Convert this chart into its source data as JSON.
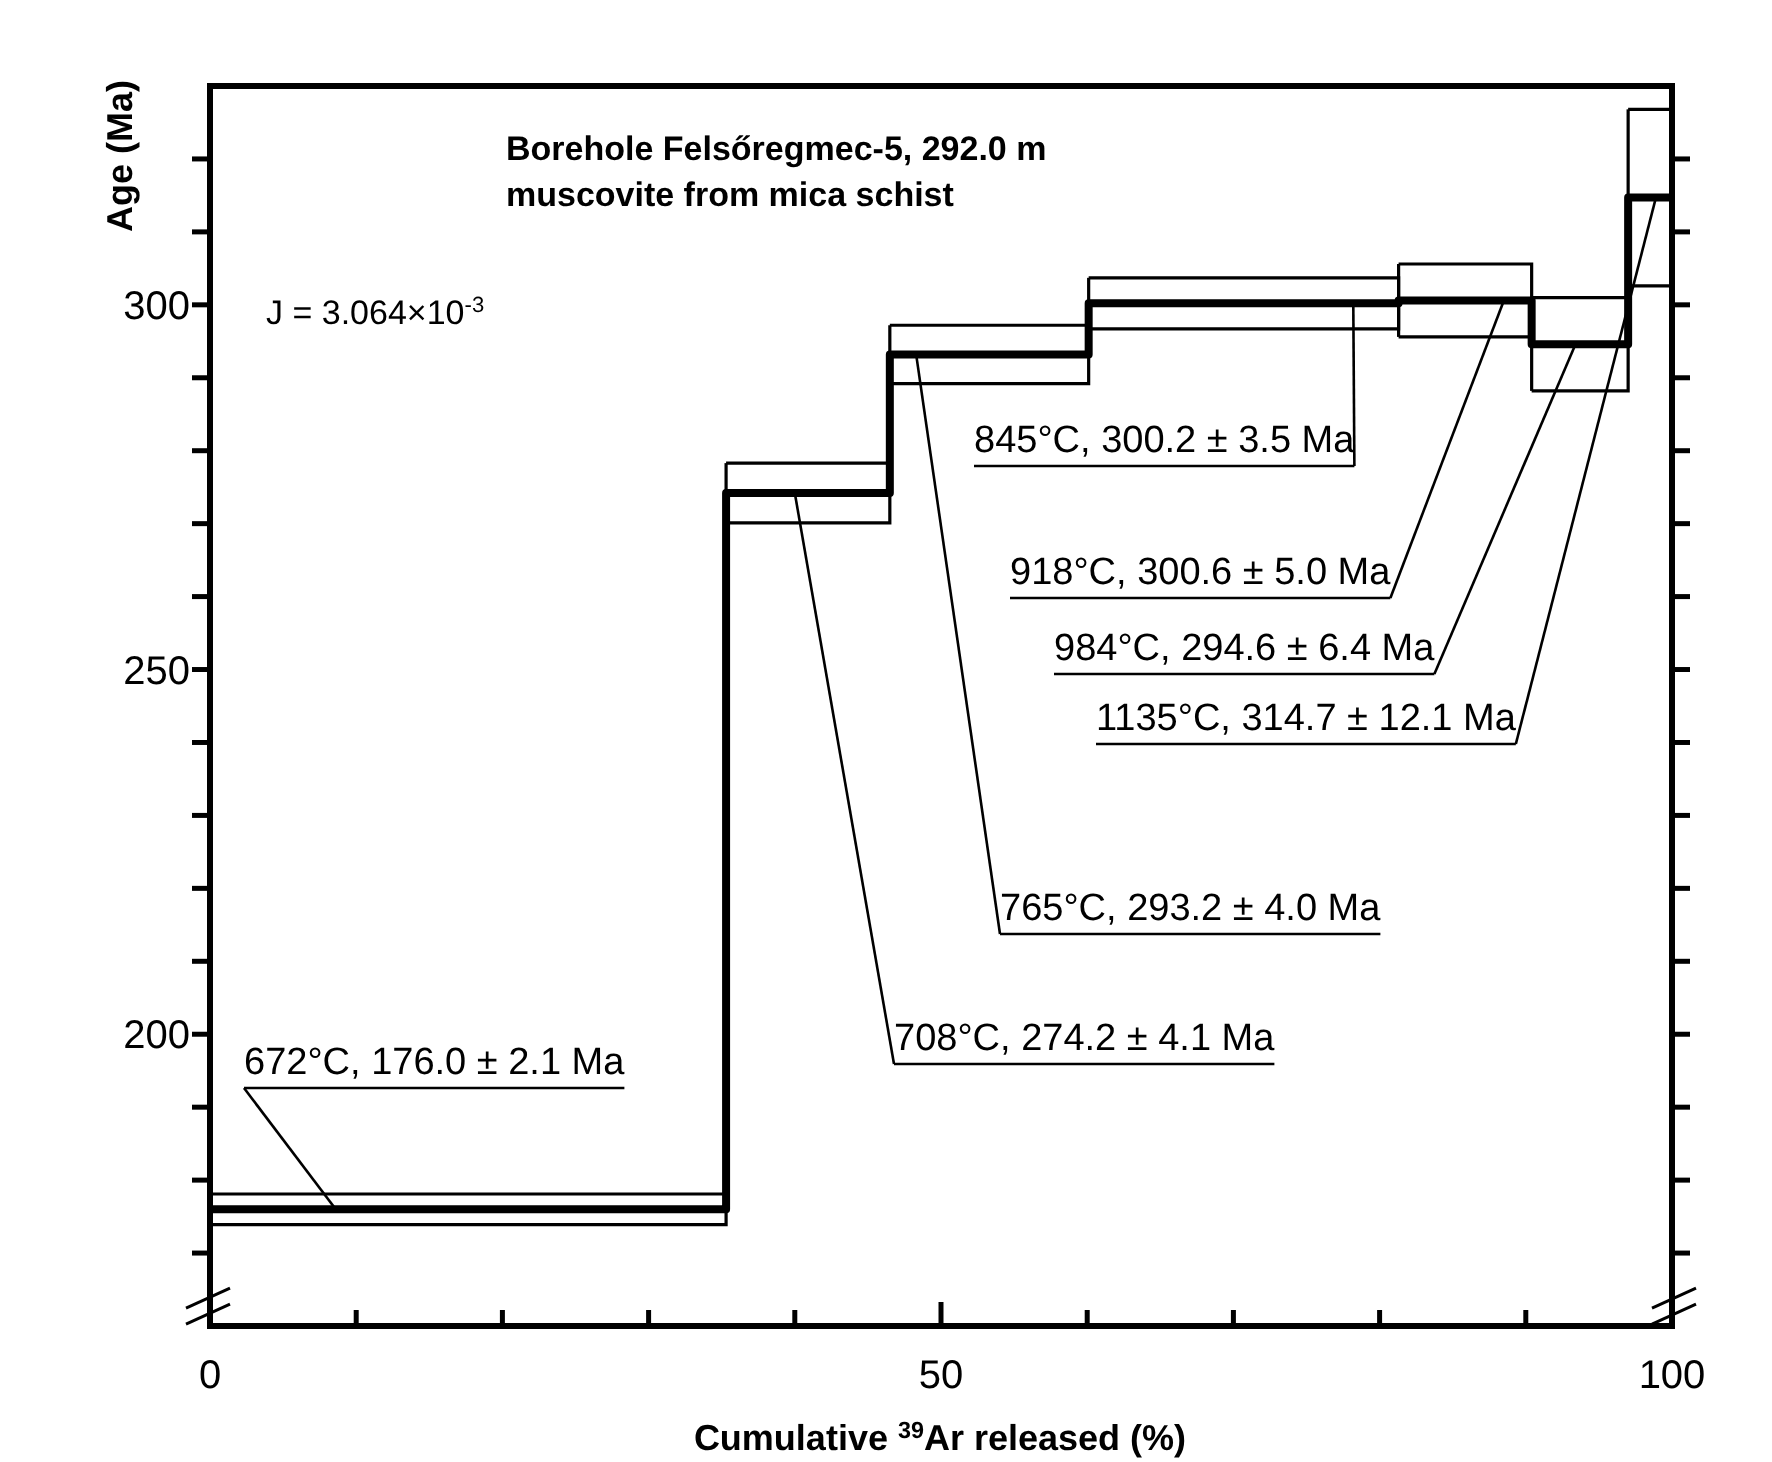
{
  "chart_data": {
    "type": "step",
    "title": "Borehole Felsőregmec-5, 292.0 m",
    "subtitle": "muscovite from mica schist",
    "xlabel": "Cumulative $^{39}$Ar released (%)",
    "ylabel": "Age (Ma)",
    "x": [
      0,
      35.3,
      46.5,
      60.1,
      81.3,
      90.4,
      97.0,
      100
    ],
    "series": [
      {
        "color": "#000000",
        "values": [
          176.0,
          274.2,
          293.2,
          300.2,
          300.6,
          294.6,
          314.7,
          314.7
        ],
        "errors": [
          2.1,
          4.1,
          4.0,
          3.5,
          5.0,
          6.4,
          12.1,
          null
        ]
      }
    ],
    "xlim": [
      0,
      100
    ],
    "ylim": [
      160,
      330
    ],
    "xticks": [
      0,
      {
        "value": 10,
        "label": null
      },
      {
        "value": 20,
        "label": null
      },
      {
        "value": 30,
        "label": null
      },
      {
        "value": 40,
        "label": null
      },
      50,
      {
        "value": 60,
        "label": null
      },
      {
        "value": 70,
        "label": null
      },
      {
        "value": 80,
        "label": null
      },
      {
        "value": 90,
        "label": null
      },
      100
    ],
    "yticks": [
      {
        "value": 170,
        "label": null
      },
      {
        "value": 180,
        "label": null
      },
      {
        "value": 190,
        "label": null
      },
      200,
      {
        "value": 210,
        "label": null
      },
      {
        "value": 220,
        "label": null
      },
      {
        "value": 230,
        "label": null
      },
      {
        "value": 240,
        "label": null
      },
      250,
      {
        "value": 260,
        "label": null
      },
      {
        "value": 270,
        "label": null
      },
      {
        "value": 280,
        "label": null
      },
      {
        "value": 290,
        "label": null
      },
      300,
      {
        "value": 310,
        "label": null
      },
      {
        "value": 320,
        "label": null
      }
    ],
    "annotations": [
      "J = 3.064×10$^{-3}$",
      {
        "text": "672°C, 176.0 ± 2.1 Ma",
        "x": 8.6,
        "y": 176.0
      },
      {
        "text": "708°C, 274.2 ± 4.1 Ma",
        "x": 40.0,
        "y": 274.2
      },
      {
        "text": "765°C, 293.2 ± 4.0 Ma",
        "x": 48.3,
        "y": 293.2
      },
      {
        "text": "845°C, 300.2 ± 3.5 Ma",
        "x": 78.2,
        "y": 300.2
      },
      {
        "text": "918°C, 300.6 ± 5.0 Ma",
        "x": 88.5,
        "y": 300.6
      },
      {
        "text": "984°C, 294.6 ± 6.4 Ma",
        "x": 93.4,
        "y": 294.6
      },
      {
        "text": "1135°C, 314.7 ± 12.1 Ma",
        "x": 98.9,
        "y": 314.7
      }
    ]
  }
}
